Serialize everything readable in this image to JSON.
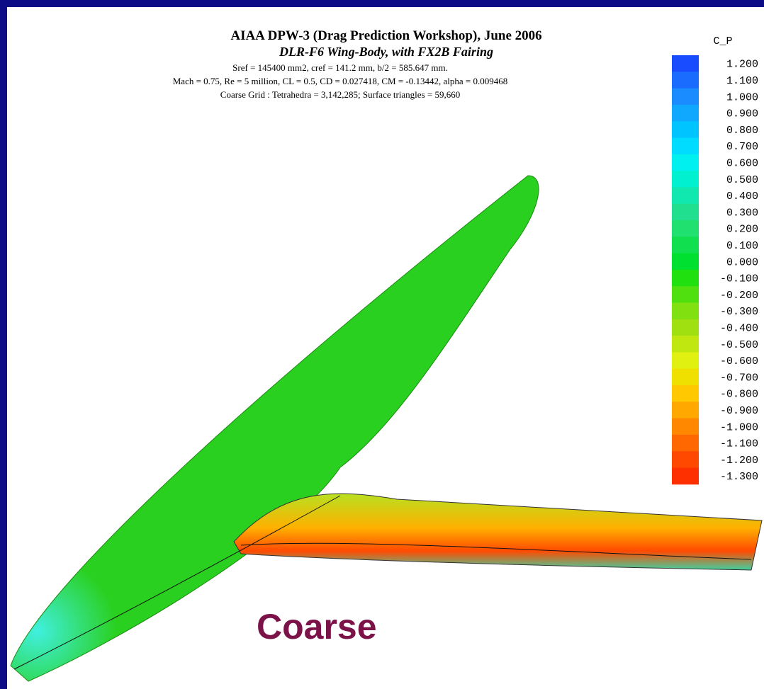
{
  "header": {
    "title": "AIAA DPW-3 (Drag Prediction Workshop), June 2006",
    "subtitle": "DLR-F6 Wing-Body, with FX2B Fairing",
    "lines": [
      "Sref = 145400 mm2, cref = 141.2 mm, b/2 = 585.647 mm.",
      "Mach = 0.75, Re = 5 million, CL = 0.5, CD = 0.027418, CM = -0.13442, alpha = 0.009468",
      "Coarse Grid : Tetrahedra = 3,142,285; Surface triangles = 59,660"
    ]
  },
  "colorbar": {
    "label": "C_P",
    "levels": [
      {
        "label": "1.200",
        "color": "#1a4cff"
      },
      {
        "label": "1.100",
        "color": "#1a6cff"
      },
      {
        "label": "1.000",
        "color": "#1a8cff"
      },
      {
        "label": "0.900",
        "color": "#10a8ff"
      },
      {
        "label": "0.800",
        "color": "#00c4ff"
      },
      {
        "label": "0.700",
        "color": "#00dcff"
      },
      {
        "label": "0.600",
        "color": "#00f0f0"
      },
      {
        "label": "0.500",
        "color": "#00f0d0"
      },
      {
        "label": "0.400",
        "color": "#10e8b0"
      },
      {
        "label": "0.300",
        "color": "#20e090"
      },
      {
        "label": "0.200",
        "color": "#20e070"
      },
      {
        "label": "0.100",
        "color": "#10e050"
      },
      {
        "label": "0.000",
        "color": "#00e030"
      },
      {
        "label": "-0.100",
        "color": "#20e010"
      },
      {
        "label": "-0.200",
        "color": "#50e010"
      },
      {
        "label": "-0.300",
        "color": "#80e010"
      },
      {
        "label": "-0.400",
        "color": "#a0e010"
      },
      {
        "label": "-0.500",
        "color": "#c0e810"
      },
      {
        "label": "-0.600",
        "color": "#e0f010"
      },
      {
        "label": "-0.700",
        "color": "#f0e000"
      },
      {
        "label": "-0.800",
        "color": "#ffc800"
      },
      {
        "label": "-0.900",
        "color": "#ffa800"
      },
      {
        "label": "-1.000",
        "color": "#ff8800"
      },
      {
        "label": "-1.100",
        "color": "#ff6800"
      },
      {
        "label": "-1.200",
        "color": "#ff4800"
      },
      {
        "label": "-1.300",
        "color": "#ff3000"
      }
    ]
  },
  "caption": "Coarse"
}
